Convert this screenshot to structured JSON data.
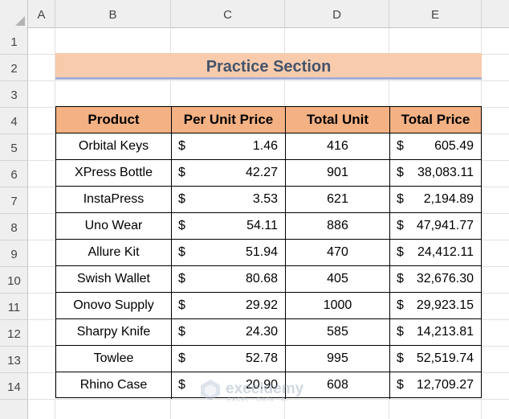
{
  "columns": [
    "A",
    "B",
    "C",
    "D",
    "E"
  ],
  "rows": [
    "1",
    "2",
    "3",
    "4",
    "5",
    "6",
    "7",
    "8",
    "9",
    "10",
    "11",
    "12",
    "13",
    "14"
  ],
  "title": "Practice Section",
  "table": {
    "headers": [
      "Product",
      "Per Unit Price",
      "Total Unit",
      "Total Price"
    ],
    "currency_symbol": "$",
    "rows": [
      {
        "product": "Orbital Keys",
        "unit_price": "1.46",
        "total_unit": "416",
        "total_price": "605.49"
      },
      {
        "product": "XPress Bottle",
        "unit_price": "42.27",
        "total_unit": "901",
        "total_price": "38,083.11"
      },
      {
        "product": "InstaPress",
        "unit_price": "3.53",
        "total_unit": "621",
        "total_price": "2,194.89"
      },
      {
        "product": "Uno Wear",
        "unit_price": "54.11",
        "total_unit": "886",
        "total_price": "47,941.77"
      },
      {
        "product": "Allure Kit",
        "unit_price": "51.94",
        "total_unit": "470",
        "total_price": "24,412.11"
      },
      {
        "product": "Swish Wallet",
        "unit_price": "80.68",
        "total_unit": "405",
        "total_price": "32,676.30"
      },
      {
        "product": "Onovo Supply",
        "unit_price": "29.92",
        "total_unit": "1000",
        "total_price": "29,923.15"
      },
      {
        "product": "Sharpy Knife",
        "unit_price": "24.30",
        "total_unit": "585",
        "total_price": "14,213.81"
      },
      {
        "product": "Towlee",
        "unit_price": "52.78",
        "total_unit": "995",
        "total_price": "52,519.74"
      },
      {
        "product": "Rhino Case",
        "unit_price": "20.90",
        "total_unit": "608",
        "total_price": "12,709.27"
      }
    ]
  },
  "watermark": {
    "name": "exceldemy",
    "tagline": "EXCEL · DATA · BI"
  },
  "colors": {
    "title_fill": "#f8cbad",
    "title_text": "#44546a",
    "header_fill": "#f4b183",
    "title_underline": "#a5aed4"
  }
}
